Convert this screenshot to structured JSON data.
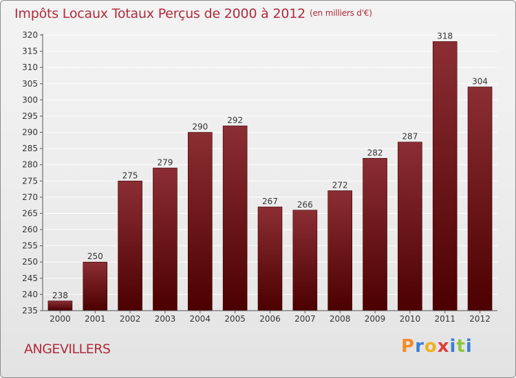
{
  "header": {
    "title": "Impôts Locaux Totaux Perçus de 2000 à 2012",
    "unit": "(en milliers d'€)"
  },
  "footer": {
    "city": "ANGEVILLERS",
    "brand_letters": [
      "P",
      "r",
      "o",
      "x",
      "i",
      "t",
      "i"
    ]
  },
  "colors": {
    "bar_top": "#8b2e34",
    "bar_bottom": "#4c0000",
    "text_accent": "#b02a3a",
    "grid": "#ffffff",
    "axis": "#555555",
    "brand": [
      "#f28c28",
      "#3a7fd5",
      "#f0b020",
      "#e0403a",
      "#3a7fd5",
      "#8dc63f",
      "#3a7fd5"
    ]
  },
  "chart_data": {
    "type": "bar",
    "title": "Impôts Locaux Totaux Perçus de 2000 à 2012",
    "xlabel": "",
    "ylabel": "",
    "categories": [
      "2000",
      "2001",
      "2002",
      "2003",
      "2004",
      "2005",
      "2006",
      "2007",
      "2008",
      "2009",
      "2010",
      "2011",
      "2012"
    ],
    "values": [
      238,
      250,
      275,
      279,
      290,
      292,
      267,
      266,
      272,
      282,
      287,
      318,
      304
    ],
    "ylim": [
      235,
      320
    ],
    "yticks": [
      235,
      240,
      245,
      250,
      255,
      260,
      265,
      270,
      275,
      280,
      285,
      290,
      295,
      300,
      305,
      310,
      315,
      320
    ],
    "grid": true
  }
}
